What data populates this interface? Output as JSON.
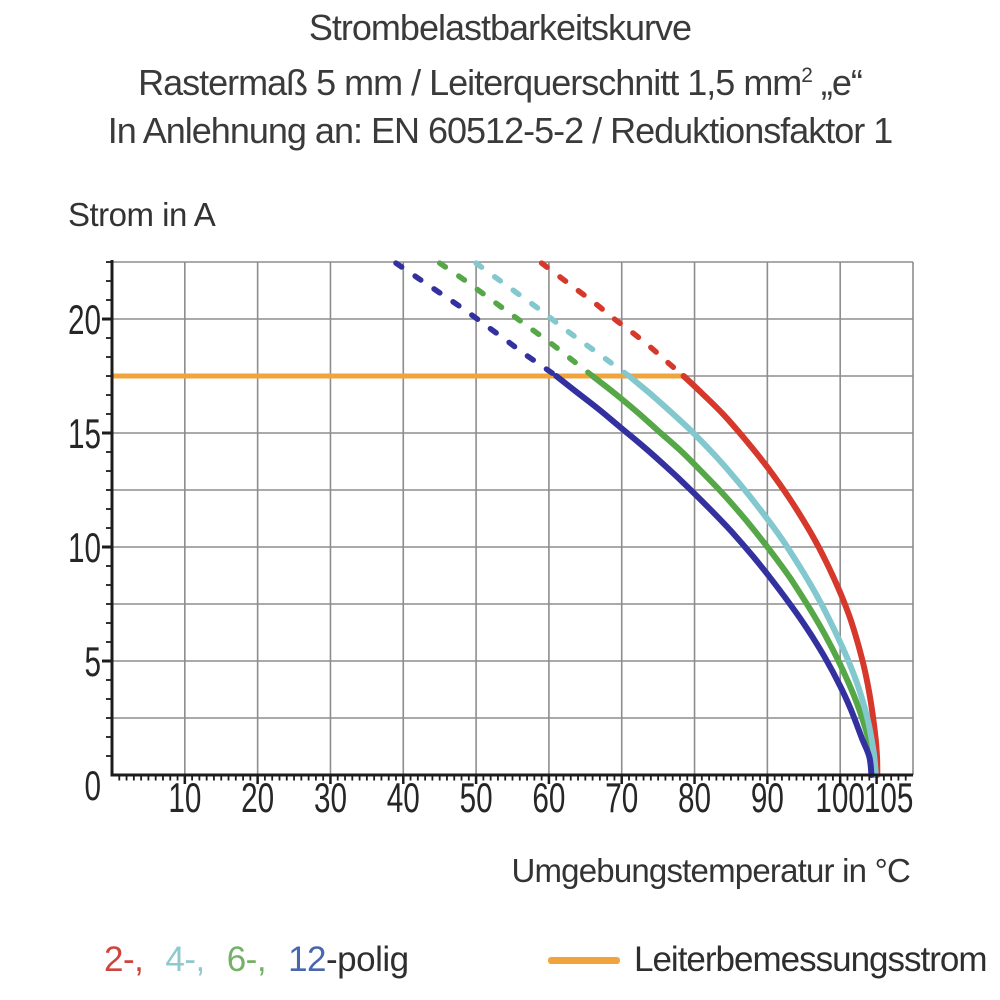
{
  "header": {
    "line1": "Strombelastbarkeitskurve",
    "line2_main": "Rastermaß 5 mm / Leiterquerschnitt 1,5 mm",
    "line2_sup": "2",
    "line2_tail": " „e“",
    "line3": "In Anlehnung an: EN 60512-5-2 / Reduktionsfaktor 1"
  },
  "legend": {
    "pole_items": [
      {
        "label": "2-,",
        "color": "#CE453C"
      },
      {
        "label": "4-,",
        "color": "#8FC8CD"
      },
      {
        "label": "6-,",
        "color": "#72B166"
      },
      {
        "label": "12",
        "color": "#4A66AE"
      }
    ],
    "pole_suffix": "-polig",
    "reference_label": "Leiterbemessungsstrom",
    "reference_color": "#F2A43C"
  },
  "chart_data": {
    "type": "line",
    "title": "Strombelastbarkeitskurve",
    "subtitle": "Rastermaß 5 mm / Leiterquerschnitt 1,5 mm² „e“",
    "note": "In Anlehnung an: EN 60512-5-2 / Reduktionsfaktor 1",
    "xlabel": "Umgebungstemperatur in °C",
    "ylabel": "Strom in A",
    "xlim": [
      0,
      110
    ],
    "ylim": [
      0,
      22.5
    ],
    "x_gridline_step": 10,
    "y_gridline_step": 2.5,
    "x_minor_tick_step": 1,
    "y_minor_tick_step": 0.8333,
    "x_tick_labels": [
      10,
      20,
      30,
      40,
      50,
      60,
      70,
      80,
      90,
      100,
      105
    ],
    "y_tick_labels": [
      0,
      5,
      10,
      15,
      20
    ],
    "grid": true,
    "grid_color": "#8D8D8D",
    "axis_color": "#1c1c1c",
    "reference_line": {
      "label": "Leiterbemessungsstrom",
      "current_a": 17.5,
      "x_start": 0,
      "x_end": 78.5,
      "color": "#F2A43C"
    },
    "series": [
      {
        "name": "2-polig",
        "color": "#D6382B",
        "dashed_points": [
          [
            59,
            22.45
          ],
          [
            61.5,
            21.85
          ],
          [
            64,
            21.25
          ],
          [
            66.5,
            20.65
          ],
          [
            69,
            20.0
          ],
          [
            71.5,
            19.4
          ],
          [
            74,
            18.75
          ],
          [
            76.3,
            18.1
          ],
          [
            78.5,
            17.5
          ]
        ],
        "solid_points": [
          [
            78.5,
            17.5
          ],
          [
            81,
            16.75
          ],
          [
            84,
            15.8
          ],
          [
            87,
            14.7
          ],
          [
            90,
            13.5
          ],
          [
            93,
            12.15
          ],
          [
            96,
            10.6
          ],
          [
            98,
            9.4
          ],
          [
            100,
            8.0
          ],
          [
            101.5,
            6.75
          ],
          [
            103,
            5.1
          ],
          [
            104,
            3.6
          ],
          [
            104.8,
            1.8
          ],
          [
            105.05,
            0.8
          ],
          [
            105.1,
            0
          ]
        ]
      },
      {
        "name": "4-polig",
        "color": "#82C8CE",
        "dashed_points": [
          [
            50,
            22.45
          ],
          [
            53,
            21.75
          ],
          [
            56,
            21.05
          ],
          [
            59,
            20.35
          ],
          [
            62,
            19.6
          ],
          [
            65,
            18.9
          ],
          [
            68,
            18.2
          ],
          [
            71,
            17.5
          ]
        ],
        "solid_points": [
          [
            71,
            17.5
          ],
          [
            74,
            16.7
          ],
          [
            77,
            15.85
          ],
          [
            80,
            14.95
          ],
          [
            83,
            13.95
          ],
          [
            86,
            12.85
          ],
          [
            89,
            11.65
          ],
          [
            92,
            10.35
          ],
          [
            95,
            8.85
          ],
          [
            97,
            7.75
          ],
          [
            99,
            6.5
          ],
          [
            101,
            5.1
          ],
          [
            102.5,
            3.85
          ],
          [
            103.8,
            2.4
          ],
          [
            104.6,
            1.0
          ],
          [
            104.9,
            0
          ]
        ]
      },
      {
        "name": "6-polig",
        "color": "#55A747",
        "dashed_points": [
          [
            45,
            22.45
          ],
          [
            48,
            21.8
          ],
          [
            51,
            21.1
          ],
          [
            54,
            20.4
          ],
          [
            57,
            19.7
          ],
          [
            60,
            19.0
          ],
          [
            63,
            18.25
          ],
          [
            66,
            17.5
          ]
        ],
        "solid_points": [
          [
            66,
            17.5
          ],
          [
            69,
            16.75
          ],
          [
            72,
            15.95
          ],
          [
            75,
            15.1
          ],
          [
            78,
            14.25
          ],
          [
            81,
            13.3
          ],
          [
            84,
            12.3
          ],
          [
            87,
            11.2
          ],
          [
            90,
            10.0
          ],
          [
            93,
            8.7
          ],
          [
            96,
            7.2
          ],
          [
            98,
            6.1
          ],
          [
            100,
            4.85
          ],
          [
            102,
            3.4
          ],
          [
            103.5,
            2.0
          ],
          [
            104.4,
            0.9
          ],
          [
            104.7,
            0
          ]
        ]
      },
      {
        "name": "12-polig",
        "color": "#33309F",
        "dashed_points": [
          [
            39,
            22.45
          ],
          [
            42,
            21.8
          ],
          [
            45,
            21.15
          ],
          [
            48,
            20.5
          ],
          [
            51,
            19.8
          ],
          [
            54,
            19.1
          ],
          [
            56.5,
            18.5
          ],
          [
            59,
            17.95
          ],
          [
            61,
            17.5
          ]
        ],
        "solid_points": [
          [
            61,
            17.5
          ],
          [
            64,
            16.75
          ],
          [
            67,
            16.0
          ],
          [
            70,
            15.2
          ],
          [
            73,
            14.4
          ],
          [
            76,
            13.55
          ],
          [
            79,
            12.65
          ],
          [
            82,
            11.7
          ],
          [
            85,
            10.7
          ],
          [
            88,
            9.6
          ],
          [
            91,
            8.4
          ],
          [
            94,
            7.1
          ],
          [
            96,
            6.15
          ],
          [
            98,
            5.1
          ],
          [
            100,
            3.9
          ],
          [
            101.5,
            2.85
          ],
          [
            103,
            1.6
          ],
          [
            104,
            0.8
          ],
          [
            104.3,
            0
          ]
        ]
      }
    ]
  }
}
